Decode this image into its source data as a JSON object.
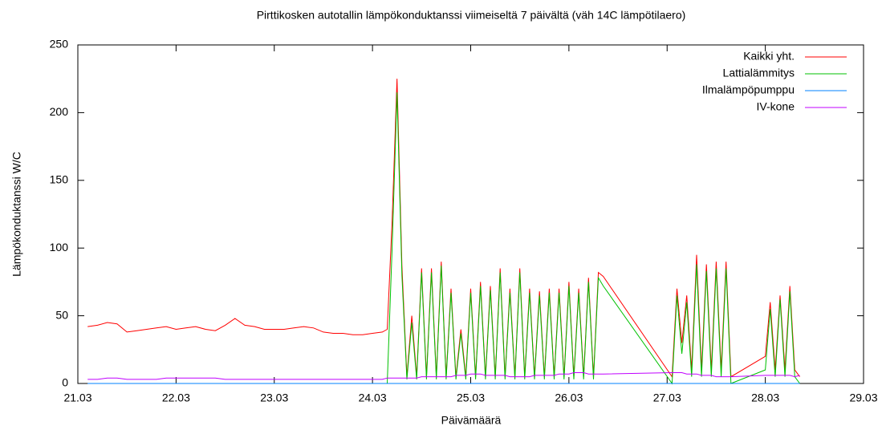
{
  "chart_data": {
    "type": "line",
    "title": "Pirttikosken autotallin lämpökonduktanssi viimeiseltä 7 päivältä (väh 14C lämpötilaero)",
    "xlabel": "Päivämäärä",
    "ylabel": "Lämpökonduktanssi W/C",
    "xlim": [
      21,
      29
    ],
    "xticks": [
      {
        "value": 21,
        "label": "21.03"
      },
      {
        "value": 22,
        "label": "22.03"
      },
      {
        "value": 23,
        "label": "23.03"
      },
      {
        "value": 24,
        "label": "24.03"
      },
      {
        "value": 25,
        "label": "25.03"
      },
      {
        "value": 26,
        "label": "26.03"
      },
      {
        "value": 27,
        "label": "27.03"
      },
      {
        "value": 28,
        "label": "28.03"
      },
      {
        "value": 29,
        "label": "29.03"
      }
    ],
    "ylim": [
      0,
      250
    ],
    "yticks": [
      0,
      50,
      100,
      150,
      200,
      250
    ],
    "legend": "top-right",
    "x": [
      21.1,
      21.2,
      21.3,
      21.4,
      21.5,
      21.6,
      21.7,
      21.8,
      21.9,
      22.0,
      22.1,
      22.2,
      22.3,
      22.4,
      22.5,
      22.6,
      22.7,
      22.8,
      22.9,
      23.0,
      23.1,
      23.2,
      23.3,
      23.4,
      23.5,
      23.6,
      23.7,
      23.8,
      23.9,
      24.0,
      24.1,
      24.15,
      24.2,
      24.25,
      24.3,
      24.35,
      24.4,
      24.45,
      24.5,
      24.55,
      24.6,
      24.65,
      24.7,
      24.75,
      24.8,
      24.85,
      24.9,
      24.95,
      25.0,
      25.05,
      25.1,
      25.15,
      25.2,
      25.25,
      25.3,
      25.35,
      25.4,
      25.45,
      25.5,
      25.55,
      25.6,
      25.65,
      25.7,
      25.75,
      25.8,
      25.85,
      25.9,
      25.95,
      26.0,
      26.05,
      26.1,
      26.15,
      26.2,
      26.25,
      26.3,
      26.35,
      27.05,
      27.1,
      27.15,
      27.2,
      27.25,
      27.3,
      27.35,
      27.4,
      27.45,
      27.5,
      27.55,
      27.6,
      27.65,
      28.0,
      28.05,
      28.1,
      28.15,
      28.2,
      28.25,
      28.3,
      28.35
    ],
    "series": [
      {
        "name": "Kaikki yht.",
        "color": "#ff0000",
        "values": [
          42,
          43,
          45,
          44,
          38,
          39,
          40,
          41,
          42,
          40,
          41,
          42,
          40,
          39,
          43,
          48,
          43,
          42,
          40,
          40,
          40,
          41,
          42,
          41,
          38,
          37,
          37,
          36,
          36,
          37,
          38,
          40,
          120,
          225,
          87,
          5,
          50,
          5,
          85,
          5,
          85,
          5,
          90,
          5,
          70,
          5,
          40,
          5,
          70,
          5,
          75,
          5,
          72,
          5,
          85,
          5,
          70,
          5,
          85,
          5,
          70,
          5,
          68,
          5,
          70,
          5,
          70,
          5,
          75,
          5,
          70,
          5,
          78,
          5,
          82,
          79,
          5,
          70,
          30,
          65,
          10,
          95,
          10,
          88,
          10,
          90,
          10,
          90,
          5,
          20,
          60,
          10,
          65,
          10,
          72,
          10,
          5
        ]
      },
      {
        "name": "Lattialämmitys",
        "color": "#00c000",
        "values": [
          null,
          null,
          null,
          null,
          null,
          null,
          null,
          null,
          null,
          null,
          null,
          null,
          null,
          null,
          null,
          null,
          null,
          null,
          null,
          null,
          null,
          null,
          null,
          null,
          null,
          null,
          null,
          null,
          null,
          null,
          null,
          0,
          100,
          215,
          80,
          3,
          45,
          3,
          82,
          3,
          82,
          3,
          87,
          3,
          67,
          3,
          37,
          3,
          67,
          3,
          72,
          3,
          69,
          3,
          82,
          3,
          67,
          3,
          82,
          3,
          67,
          3,
          65,
          3,
          67,
          3,
          67,
          3,
          72,
          3,
          67,
          3,
          75,
          3,
          78,
          72,
          0,
          65,
          22,
          60,
          5,
          88,
          5,
          83,
          5,
          85,
          5,
          85,
          0,
          10,
          55,
          5,
          62,
          5,
          68,
          5,
          0
        ]
      },
      {
        "name": "Ilmalämpöpumppu",
        "color": "#0080ff",
        "values": [
          0,
          0,
          0,
          0,
          0,
          0,
          0,
          0,
          0,
          0,
          0,
          0,
          0,
          0,
          0,
          0,
          0,
          0,
          0,
          0,
          0,
          0,
          0,
          0,
          0,
          0,
          0,
          0,
          0,
          0,
          0,
          0,
          0,
          0,
          0,
          0,
          0,
          0,
          0,
          0,
          0,
          0,
          0,
          0,
          0,
          0,
          0,
          0,
          0,
          0,
          0,
          0,
          0,
          0,
          0,
          0,
          0,
          0,
          0,
          0,
          0,
          0,
          0,
          0,
          0,
          0,
          0,
          0,
          0,
          0,
          0,
          0,
          0,
          0,
          0,
          0,
          0,
          0,
          0,
          0,
          0,
          0,
          0,
          0,
          0,
          0,
          0,
          0,
          0,
          0,
          0,
          0,
          0,
          0,
          0,
          0,
          0
        ]
      },
      {
        "name": "IV-kone",
        "color": "#c000ff",
        "values": [
          3,
          3,
          4,
          4,
          3,
          3,
          3,
          3,
          4,
          4,
          4,
          4,
          4,
          4,
          3,
          3,
          3,
          3,
          3,
          3,
          3,
          3,
          3,
          3,
          3,
          3,
          3,
          3,
          3,
          3,
          3,
          4,
          4,
          4,
          4,
          4,
          4,
          4,
          5,
          5,
          5,
          5,
          5,
          5,
          5,
          6,
          6,
          6,
          7,
          7,
          7,
          6,
          6,
          6,
          6,
          6,
          5,
          5,
          5,
          5,
          5,
          6,
          6,
          6,
          6,
          6,
          7,
          7,
          7,
          8,
          8,
          8,
          7,
          7,
          7,
          7,
          8,
          8,
          8,
          7,
          7,
          7,
          6,
          6,
          6,
          5,
          5,
          5,
          5,
          6,
          6,
          6,
          6,
          6,
          6,
          5,
          6
        ]
      }
    ]
  }
}
